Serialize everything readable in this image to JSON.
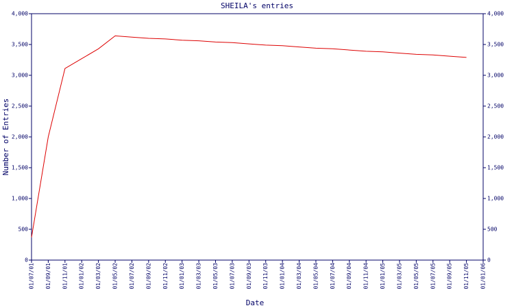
{
  "chart_data": {
    "type": "line",
    "title": "SHEILA's entries",
    "x_label": "Date",
    "y_label": "Number of Entries",
    "categories": [
      "01/07/01",
      "01/09/01",
      "01/11/01",
      "01/01/02",
      "01/03/02",
      "01/05/02",
      "01/07/02",
      "01/09/02",
      "01/11/02",
      "01/01/03",
      "01/03/03",
      "01/05/03",
      "01/07/03",
      "01/09/03",
      "01/11/03",
      "01/01/04",
      "01/03/04",
      "01/05/04",
      "01/07/04",
      "01/09/04",
      "01/11/04",
      "01/01/05",
      "01/03/05",
      "01/05/05",
      "01/07/05",
      "01/09/05",
      "01/11/05",
      "01/01/06"
    ],
    "series": [
      {
        "name": "SHEILA",
        "color": "#dd0000",
        "values": [
          370,
          2000,
          3110,
          3270,
          3430,
          3640,
          3620,
          3600,
          3590,
          3570,
          3560,
          3540,
          3530,
          3510,
          3490,
          3480,
          3460,
          3440,
          3430,
          3410,
          3390,
          3380,
          3360,
          3340,
          3330,
          3310,
          3290,
          null
        ]
      }
    ],
    "ylim": [
      0,
      4000
    ],
    "yticks": [
      0,
      500,
      {
        "value": 1000,
        "label": "1,000"
      },
      {
        "value": 1500,
        "label": "1,500"
      },
      {
        "value": 2000,
        "label": "2,000"
      },
      {
        "value": 2500,
        "label": "2,500"
      },
      {
        "value": 3000,
        "label": "3,000"
      },
      {
        "value": 3500,
        "label": "3,500"
      },
      {
        "value": 4000,
        "label": "4,000"
      }
    ]
  }
}
